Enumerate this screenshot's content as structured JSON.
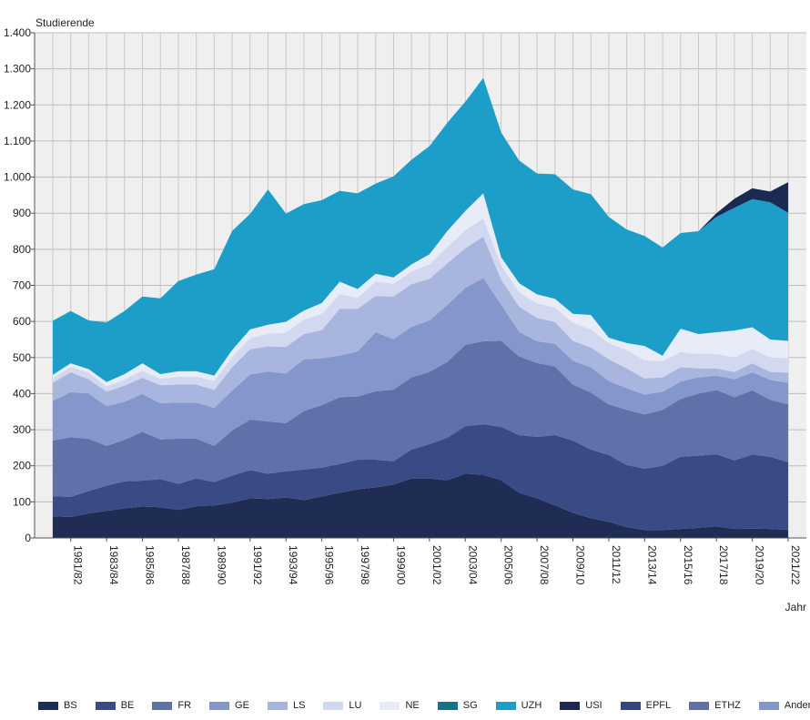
{
  "chart_data": {
    "type": "area",
    "stacked": true,
    "ylabel": "Studierende",
    "xlabel": "Jahr",
    "ylim": [
      0,
      1400
    ],
    "yticks": [
      0,
      100,
      200,
      300,
      400,
      500,
      600,
      700,
      800,
      900,
      1000,
      1100,
      1200,
      1300,
      1400
    ],
    "ytick_labels": [
      "0",
      "100",
      "200",
      "300",
      "400",
      "500",
      "600",
      "700",
      "800",
      "900",
      "1.000",
      "1.100",
      "1.200",
      "1.300",
      "1.400"
    ],
    "grid": true,
    "legend_position": "bottom",
    "x": [
      "1980/81",
      "1981/82",
      "1982/83",
      "1983/84",
      "1984/85",
      "1985/86",
      "1986/87",
      "1987/88",
      "1988/89",
      "1989/90",
      "1990/91",
      "1991/92",
      "1992/93",
      "1993/94",
      "1994/95",
      "1995/96",
      "1996/97",
      "1997/98",
      "1998/99",
      "1999/00",
      "2000/01",
      "2001/02",
      "2002/03",
      "2003/04",
      "2004/05",
      "2005/06",
      "2006/07",
      "2007/08",
      "2008/09",
      "2009/10",
      "2010/11",
      "2011/12",
      "2012/13",
      "2013/14",
      "2014/15",
      "2015/16",
      "2016/17",
      "2017/18",
      "2018/19",
      "2019/20",
      "2020/21",
      "2021/22"
    ],
    "xtick_labels": [
      "1981/82",
      "1983/84",
      "1985/86",
      "1987/88",
      "1989/90",
      "1991/92",
      "1993/94",
      "1995/96",
      "1997/98",
      "1999/00",
      "2001/02",
      "2003/04",
      "2005/06",
      "2007/08",
      "2009/10",
      "2011/12",
      "2013/14",
      "2015/16",
      "2017/18",
      "2019/20",
      "2021/22"
    ],
    "series": [
      {
        "name": "BS",
        "color": "#1f2d55",
        "values": [
          60,
          58,
          68,
          75,
          82,
          87,
          85,
          78,
          88,
          90,
          98,
          110,
          108,
          112,
          105,
          115,
          125,
          135,
          140,
          148,
          165,
          165,
          160,
          178,
          175,
          160,
          125,
          110,
          90,
          70,
          55,
          45,
          30,
          22,
          22,
          25,
          28,
          32,
          25,
          26,
          25,
          22
        ]
      },
      {
        "name": "BE",
        "color": "#394a85",
        "values": [
          55,
          56,
          62,
          70,
          75,
          72,
          78,
          72,
          77,
          65,
          75,
          78,
          70,
          73,
          85,
          80,
          80,
          82,
          77,
          65,
          80,
          95,
          118,
          132,
          140,
          148,
          160,
          170,
          195,
          200,
          190,
          185,
          172,
          170,
          178,
          200,
          200,
          200,
          190,
          205,
          200,
          188
        ]
      },
      {
        "name": "FR",
        "color": "#5f71a8",
        "values": [
          155,
          165,
          145,
          110,
          115,
          135,
          110,
          125,
          110,
          100,
          125,
          140,
          145,
          133,
          162,
          173,
          185,
          175,
          190,
          198,
          200,
          200,
          210,
          225,
          230,
          238,
          218,
          205,
          190,
          155,
          158,
          140,
          153,
          150,
          155,
          160,
          172,
          178,
          175,
          178,
          158,
          160
        ]
      },
      {
        "name": "GE",
        "color": "#8596cc",
        "values": [
          110,
          125,
          125,
          110,
          105,
          105,
          100,
          100,
          100,
          105,
          110,
          125,
          138,
          138,
          143,
          130,
          115,
          125,
          163,
          140,
          140,
          143,
          158,
          158,
          175,
          100,
          68,
          60,
          63,
          66,
          70,
          65,
          60,
          55,
          50,
          48,
          45,
          40,
          50,
          50,
          55,
          60
        ]
      },
      {
        "name": "LS",
        "color": "#a8b5de",
        "values": [
          50,
          55,
          40,
          40,
          45,
          45,
          50,
          50,
          50,
          50,
          65,
          70,
          70,
          73,
          70,
          78,
          130,
          118,
          100,
          118,
          118,
          115,
          115,
          110,
          115,
          70,
          70,
          65,
          60,
          55,
          55,
          60,
          55,
          45,
          40,
          40,
          25,
          20,
          20,
          25,
          22,
          28
        ]
      },
      {
        "name": "LU",
        "color": "#d2d8ef",
        "values": [
          12,
          15,
          18,
          15,
          17,
          20,
          18,
          22,
          22,
          25,
          28,
          30,
          35,
          40,
          40,
          45,
          40,
          30,
          40,
          35,
          35,
          40,
          45,
          50,
          50,
          40,
          40,
          40,
          40,
          50,
          50,
          45,
          50,
          50,
          45,
          42,
          40,
          40,
          40,
          40,
          40,
          40
        ]
      },
      {
        "name": "NE",
        "color": "#e8ecf7",
        "values": [
          10,
          10,
          10,
          12,
          15,
          20,
          13,
          15,
          15,
          15,
          20,
          25,
          25,
          30,
          25,
          30,
          35,
          25,
          22,
          18,
          20,
          28,
          45,
          53,
          70,
          22,
          25,
          25,
          25,
          25,
          40,
          15,
          20,
          40,
          15,
          65,
          55,
          60,
          75,
          60,
          50,
          48
        ]
      },
      {
        "name": "SG",
        "color": "#147289",
        "values": [
          0,
          0,
          0,
          0,
          0,
          0,
          0,
          0,
          0,
          0,
          0,
          0,
          0,
          0,
          0,
          0,
          0,
          0,
          0,
          0,
          0,
          0,
          0,
          0,
          0,
          0,
          0,
          0,
          0,
          0,
          0,
          0,
          0,
          0,
          0,
          0,
          0,
          0,
          0,
          0,
          0,
          0
        ]
      },
      {
        "name": "UZH",
        "color": "#1d9ec9",
        "values": [
          150,
          145,
          135,
          165,
          175,
          185,
          210,
          250,
          268,
          295,
          330,
          320,
          375,
          300,
          295,
          285,
          252,
          265,
          250,
          280,
          290,
          300,
          300,
          303,
          320,
          345,
          340,
          335,
          345,
          345,
          335,
          335,
          315,
          305,
          300,
          265,
          285,
          320,
          340,
          355,
          380,
          355
        ]
      },
      {
        "name": "USI",
        "color": "#1b2a52",
        "values": [
          0,
          0,
          0,
          0,
          0,
          0,
          0,
          0,
          0,
          0,
          0,
          0,
          0,
          0,
          0,
          0,
          0,
          0,
          0,
          0,
          0,
          0,
          0,
          0,
          0,
          0,
          0,
          0,
          0,
          0,
          0,
          0,
          0,
          0,
          0,
          0,
          0,
          10,
          25,
          30,
          30,
          85
        ]
      },
      {
        "name": "EPFL",
        "color": "#34457f",
        "values": [
          0,
          0,
          0,
          0,
          0,
          0,
          0,
          0,
          0,
          0,
          0,
          0,
          0,
          0,
          0,
          0,
          0,
          0,
          0,
          0,
          0,
          0,
          0,
          0,
          0,
          0,
          0,
          0,
          0,
          0,
          0,
          0,
          0,
          0,
          0,
          0,
          0,
          0,
          0,
          0,
          0,
          0
        ]
      },
      {
        "name": "ETHZ",
        "color": "#5f71a8",
        "values": [
          0,
          0,
          0,
          0,
          0,
          0,
          0,
          0,
          0,
          0,
          0,
          0,
          0,
          0,
          0,
          0,
          0,
          0,
          0,
          0,
          0,
          0,
          0,
          0,
          0,
          0,
          0,
          0,
          0,
          0,
          0,
          0,
          0,
          0,
          0,
          0,
          0,
          0,
          0,
          0,
          0,
          0
        ]
      },
      {
        "name": "Andere UI",
        "color": "#8596cc",
        "values": [
          0,
          0,
          0,
          0,
          0,
          0,
          0,
          0,
          0,
          0,
          0,
          0,
          0,
          0,
          0,
          0,
          0,
          0,
          0,
          0,
          0,
          0,
          0,
          0,
          0,
          0,
          0,
          0,
          0,
          0,
          0,
          0,
          0,
          0,
          0,
          0,
          0,
          0,
          0,
          0,
          0,
          0
        ]
      }
    ]
  }
}
